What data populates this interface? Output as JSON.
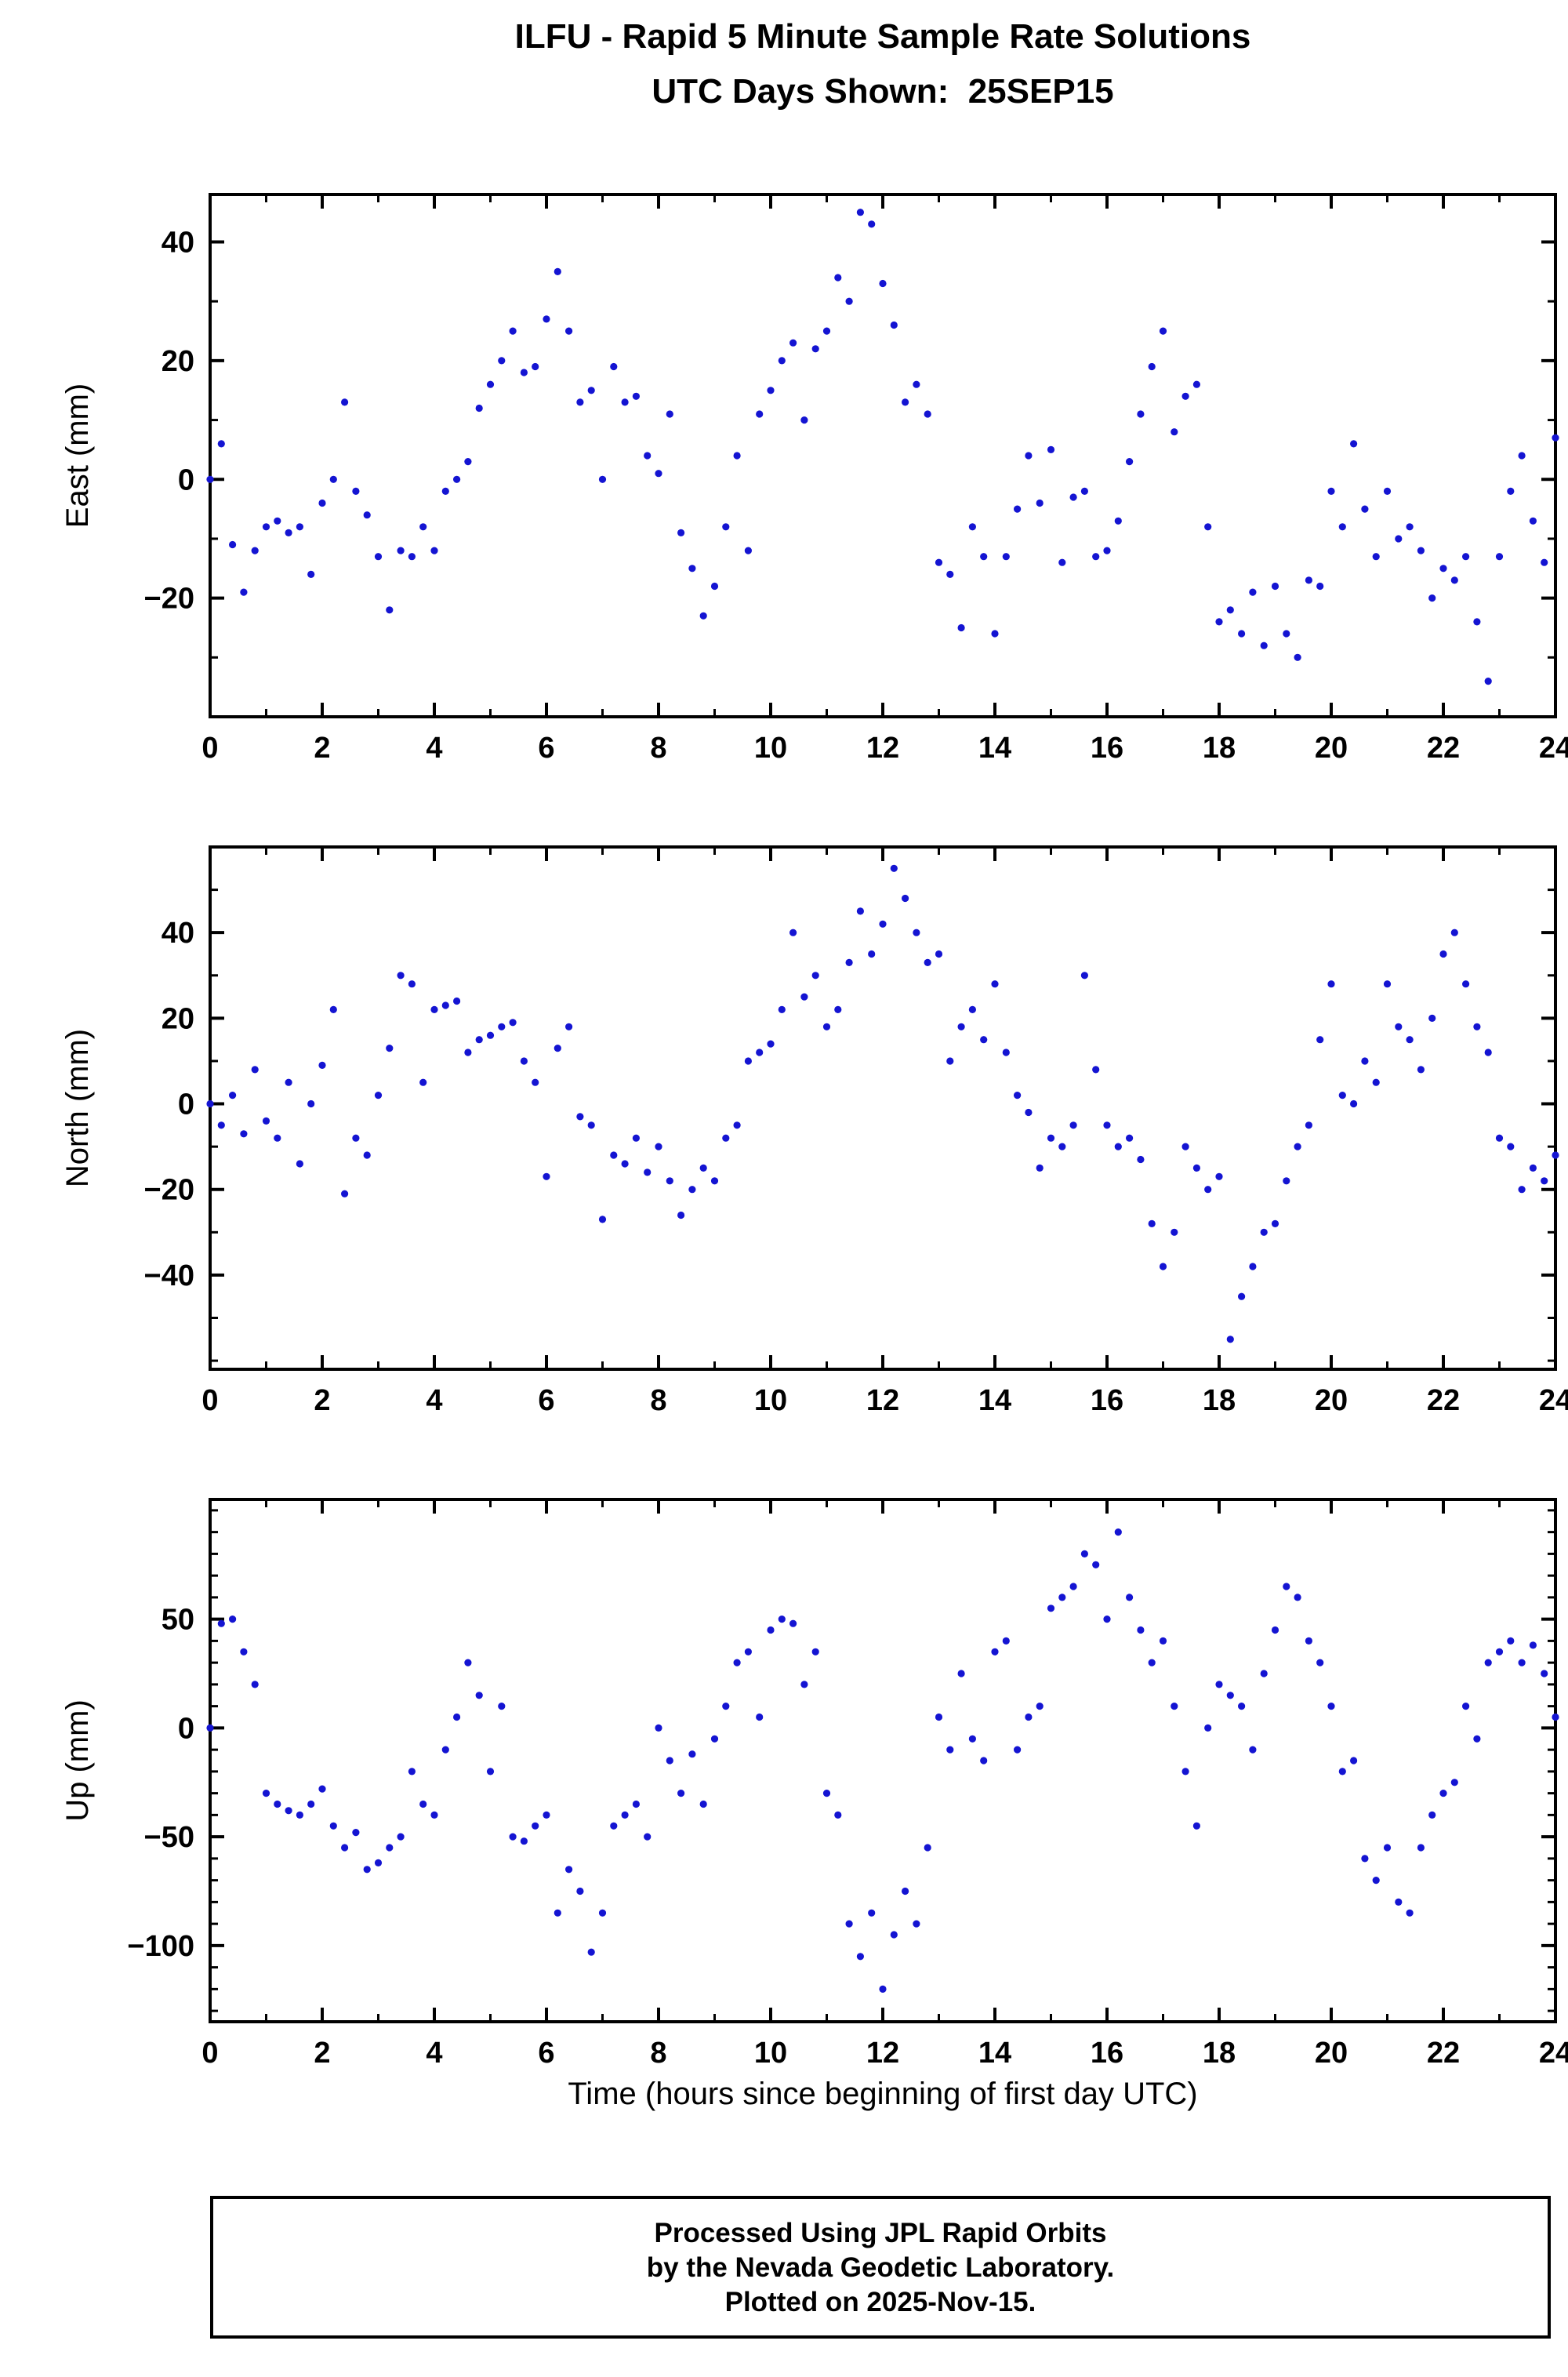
{
  "header": {
    "title": "ILFU - Rapid 5 Minute Sample Rate Solutions",
    "subtitle": "UTC Days Shown:  25SEP15"
  },
  "xlabel": "Time (hours since beginning of first day UTC)",
  "footer": {
    "line1": "Processed Using JPL Rapid Orbits",
    "line2": "by the Nevada Geodetic Laboratory.",
    "line3": "Plotted on 2025-Nov-15."
  },
  "style": {
    "point_color": "#1414d2",
    "frame_color": "#000000",
    "point_radius": 4.6
  },
  "chart_data": [
    {
      "type": "scatter",
      "ylabel": "East (mm)",
      "xlim": [
        0,
        24
      ],
      "ylim": [
        -40,
        48
      ],
      "xticks": [
        0,
        2,
        4,
        6,
        8,
        10,
        12,
        14,
        16,
        18,
        20,
        22,
        24
      ],
      "xminor": 1,
      "yticks": [
        -20,
        0,
        20,
        40
      ],
      "yminor": 10,
      "x": {
        "start": 0,
        "step": 0.2,
        "count": 121
      },
      "y": [
        0,
        6,
        -11,
        -19,
        -12,
        -8,
        -7,
        -9,
        -8,
        -16,
        -4,
        0,
        13,
        -2,
        -6,
        -13,
        -22,
        -12,
        -13,
        -8,
        -12,
        -2,
        0,
        3,
        12,
        16,
        20,
        25,
        18,
        19,
        27,
        35,
        25,
        13,
        15,
        0,
        19,
        13,
        14,
        4,
        1,
        11,
        -9,
        -15,
        -23,
        -18,
        -8,
        4,
        -12,
        11,
        15,
        20,
        23,
        10,
        22,
        25,
        34,
        30,
        45,
        43,
        33,
        26,
        13,
        16,
        11,
        -14,
        -16,
        -25,
        -8,
        -13,
        -26,
        -13,
        -5,
        4,
        -4,
        5,
        -14,
        -3,
        -2,
        -13,
        -12,
        -7,
        3,
        11,
        19,
        25,
        8,
        14,
        16,
        -8,
        -24,
        -22,
        -26,
        -19,
        -28,
        -18,
        -26,
        -30,
        -17,
        -18,
        -2,
        -8,
        6,
        -5,
        -13,
        -2,
        -10,
        -8,
        -12,
        -20,
        -15,
        -17,
        -13,
        -24,
        -34,
        -13,
        -2,
        4,
        -7,
        -14,
        7
      ]
    },
    {
      "type": "scatter",
      "ylabel": "North (mm)",
      "xlim": [
        0,
        24
      ],
      "ylim": [
        -62,
        60
      ],
      "xticks": [
        0,
        2,
        4,
        6,
        8,
        10,
        12,
        14,
        16,
        18,
        20,
        22,
        24
      ],
      "xminor": 1,
      "yticks": [
        -40,
        -20,
        0,
        20,
        40
      ],
      "yminor": 10,
      "x": {
        "start": 0,
        "step": 0.2,
        "count": 121
      },
      "y": [
        0,
        -5,
        2,
        -7,
        8,
        -4,
        -8,
        5,
        -14,
        0,
        9,
        22,
        -21,
        -8,
        -12,
        2,
        13,
        30,
        28,
        5,
        22,
        23,
        24,
        12,
        15,
        16,
        18,
        19,
        10,
        5,
        -17,
        13,
        18,
        -3,
        -5,
        -27,
        -12,
        -14,
        -8,
        -16,
        -10,
        -18,
        -26,
        -20,
        -15,
        -18,
        -8,
        -5,
        10,
        12,
        14,
        22,
        40,
        25,
        30,
        18,
        22,
        33,
        45,
        35,
        42,
        55,
        48,
        40,
        33,
        35,
        10,
        18,
        22,
        15,
        28,
        12,
        2,
        -2,
        -15,
        -8,
        -10,
        -5,
        30,
        8,
        -5,
        -10,
        -8,
        -13,
        -28,
        -38,
        -30,
        -10,
        -15,
        -20,
        -17,
        -55,
        -45,
        -38,
        -30,
        -28,
        -18,
        -10,
        -5,
        15,
        28,
        2,
        0,
        10,
        5,
        28,
        18,
        15,
        8,
        20,
        35,
        40,
        28,
        18,
        12,
        -8,
        -10,
        -20,
        -15,
        -18,
        -12
      ]
    },
    {
      "type": "scatter",
      "ylabel": "Up (mm)",
      "xlim": [
        0,
        24
      ],
      "ylim": [
        -135,
        105
      ],
      "xticks": [
        0,
        2,
        4,
        6,
        8,
        10,
        12,
        14,
        16,
        18,
        20,
        22,
        24
      ],
      "xminor": 1,
      "yticks": [
        -100,
        -50,
        0,
        50
      ],
      "yminor": 10,
      "x": {
        "start": 0,
        "step": 0.2,
        "count": 121
      },
      "y": [
        0,
        48,
        50,
        35,
        20,
        -30,
        -35,
        -38,
        -40,
        -35,
        -28,
        -45,
        -55,
        -48,
        -65,
        -62,
        -55,
        -50,
        -20,
        -35,
        -40,
        -10,
        5,
        30,
        15,
        -20,
        10,
        -50,
        -52,
        -45,
        -40,
        -85,
        -65,
        -75,
        -103,
        -85,
        -45,
        -40,
        -35,
        -50,
        0,
        -15,
        -30,
        -12,
        -35,
        -5,
        10,
        30,
        35,
        5,
        45,
        50,
        48,
        20,
        35,
        -30,
        -40,
        -90,
        -105,
        -85,
        -120,
        -95,
        -75,
        -90,
        -55,
        5,
        -10,
        25,
        -5,
        -15,
        35,
        40,
        -10,
        5,
        10,
        55,
        60,
        65,
        80,
        75,
        50,
        90,
        60,
        45,
        30,
        40,
        10,
        -20,
        -45,
        0,
        20,
        15,
        10,
        -10,
        25,
        45,
        65,
        60,
        40,
        30,
        10,
        -20,
        -15,
        -60,
        -70,
        -55,
        -80,
        -85,
        -55,
        -40,
        -30,
        -25,
        10,
        -5,
        30,
        35,
        40,
        30,
        38,
        25,
        5
      ]
    }
  ]
}
